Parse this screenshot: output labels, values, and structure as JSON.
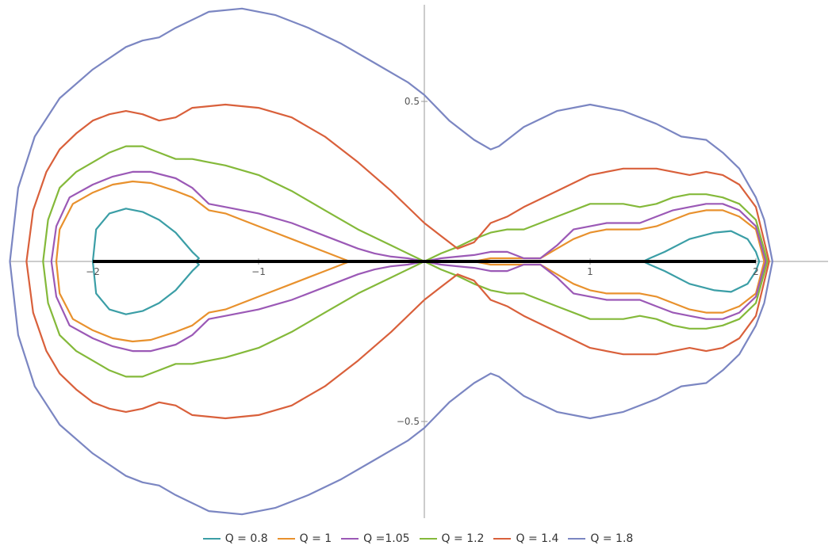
{
  "chart_data": {
    "type": "line",
    "title": "",
    "xlabel": "",
    "ylabel": "",
    "xlim": [
      -2.5,
      2.5
    ],
    "ylim": [
      -0.78,
      0.78
    ],
    "grid": false,
    "legend_position": "bottom",
    "x_ticks": [
      -2,
      -1,
      1,
      2
    ],
    "x_tick_labels": [
      "-2",
      "-1",
      "1",
      "2"
    ],
    "y_ticks": [
      -0.5,
      0.5
    ],
    "y_tick_labels": [
      "-0.5",
      "0.5"
    ],
    "segment": {
      "x": [
        -2,
        2
      ],
      "y": 0,
      "color": "#000000"
    },
    "series": [
      {
        "name": "Q = 0.8",
        "color": "#3b9ea6",
        "kind": "two_loops",
        "loops": [
          {
            "x": [
              -2.0,
              -1.98,
              -1.9,
              -1.8,
              -1.7,
              -1.6,
              -1.5,
              -1.4,
              -1.36,
              -1.38,
              -1.36,
              -1.4,
              -1.5,
              -1.6,
              -1.7,
              -1.8,
              -1.9,
              -1.98,
              -2.0
            ],
            "y": [
              0.0,
              0.1,
              0.15,
              0.165,
              0.155,
              0.13,
              0.09,
              0.03,
              0.01,
              0.0,
              -0.01,
              -0.03,
              -0.09,
              -0.13,
              -0.155,
              -0.165,
              -0.15,
              -0.1,
              0.0
            ]
          },
          {
            "x": [
              1.32,
              1.36,
              1.45,
              1.6,
              1.75,
              1.85,
              1.95,
              2.0,
              2.02,
              2.0,
              1.95,
              1.85,
              1.75,
              1.6,
              1.45,
              1.36,
              1.32
            ],
            "y": [
              0.0,
              0.01,
              0.03,
              0.07,
              0.09,
              0.095,
              0.07,
              0.03,
              0.0,
              -0.03,
              -0.07,
              -0.095,
              -0.09,
              -0.07,
              -0.03,
              -0.01,
              0.0
            ]
          }
        ]
      },
      {
        "name": "Q = 1",
        "color": "#e8912d",
        "kind": "closed",
        "x": [
          -2.22,
          -2.2,
          -2.12,
          -2.0,
          -1.88,
          -1.76,
          -1.65,
          -1.5,
          -1.4,
          -1.3,
          -1.2,
          -1.1,
          -1.0,
          -0.9,
          -0.8,
          -0.7,
          -0.6,
          -0.5,
          -0.45,
          -0.4,
          -0.3,
          -0.2,
          -0.1,
          0.0,
          0.1,
          0.2,
          0.3,
          0.4,
          0.5,
          0.6,
          0.7,
          0.8,
          0.9,
          1.0,
          1.1,
          1.2,
          1.3,
          1.4,
          1.5,
          1.6,
          1.7,
          1.8,
          1.9,
          2.0,
          2.05,
          2.0,
          1.9,
          1.8,
          1.7,
          1.6,
          1.5,
          1.4,
          1.3,
          1.2,
          1.1,
          1.0,
          0.9,
          0.8,
          0.7,
          0.6,
          0.5,
          0.4,
          0.3,
          0.2,
          0.1,
          0.0,
          -0.1,
          -0.2,
          -0.3,
          -0.4,
          -0.45,
          -0.5,
          -0.6,
          -0.7,
          -0.8,
          -0.9,
          -1.0,
          -1.1,
          -1.2,
          -1.3,
          -1.4,
          -1.5,
          -1.65,
          -1.76,
          -1.88,
          -2.0,
          -2.12,
          -2.2,
          -2.22
        ],
        "y": [
          0.0,
          0.1,
          0.18,
          0.215,
          0.24,
          0.25,
          0.245,
          0.22,
          0.2,
          0.16,
          0.15,
          0.13,
          0.11,
          0.09,
          0.07,
          0.05,
          0.03,
          0.01,
          0.0,
          0.0,
          0.0,
          0.0,
          0.0,
          0.0,
          0.0,
          0.0,
          0.0,
          0.01,
          0.01,
          0.01,
          0.01,
          0.04,
          0.07,
          0.09,
          0.1,
          0.1,
          0.1,
          0.11,
          0.13,
          0.15,
          0.16,
          0.16,
          0.14,
          0.1,
          0.0,
          -0.1,
          -0.14,
          -0.16,
          -0.16,
          -0.15,
          -0.13,
          -0.11,
          -0.1,
          -0.1,
          -0.1,
          -0.09,
          -0.07,
          -0.04,
          -0.01,
          -0.01,
          -0.01,
          -0.01,
          0.0,
          0.0,
          0.0,
          0.0,
          0.0,
          0.0,
          0.0,
          0.0,
          0.0,
          -0.01,
          -0.03,
          -0.05,
          -0.07,
          -0.09,
          -0.11,
          -0.13,
          -0.15,
          -0.16,
          -0.2,
          -0.22,
          -0.245,
          -0.25,
          -0.24,
          -0.215,
          -0.18,
          -0.1,
          0.0
        ]
      },
      {
        "name": "Q =1.05",
        "color": "#9b59b6",
        "kind": "closed",
        "x": [
          -2.25,
          -2.22,
          -2.14,
          -2.0,
          -1.88,
          -1.76,
          -1.65,
          -1.5,
          -1.4,
          -1.3,
          -1.2,
          -1.0,
          -0.8,
          -0.6,
          -0.4,
          -0.3,
          -0.2,
          -0.1,
          0.0,
          0.1,
          0.2,
          0.3,
          0.4,
          0.5,
          0.6,
          0.7,
          0.8,
          0.9,
          1.0,
          1.1,
          1.2,
          1.3,
          1.4,
          1.5,
          1.6,
          1.7,
          1.8,
          1.9,
          2.0,
          2.06,
          2.0,
          1.9,
          1.8,
          1.7,
          1.6,
          1.5,
          1.4,
          1.3,
          1.2,
          1.1,
          1.0,
          0.9,
          0.8,
          0.7,
          0.6,
          0.5,
          0.4,
          0.3,
          0.2,
          0.1,
          0.0,
          -0.1,
          -0.2,
          -0.3,
          -0.4,
          -0.6,
          -0.8,
          -1.0,
          -1.2,
          -1.3,
          -1.4,
          -1.5,
          -1.65,
          -1.76,
          -1.88,
          -2.0,
          -2.14,
          -2.22,
          -2.25
        ],
        "y": [
          0.0,
          0.11,
          0.2,
          0.24,
          0.265,
          0.28,
          0.28,
          0.26,
          0.23,
          0.18,
          0.17,
          0.15,
          0.12,
          0.08,
          0.04,
          0.025,
          0.015,
          0.01,
          0.0,
          0.01,
          0.015,
          0.02,
          0.03,
          0.03,
          0.01,
          0.01,
          0.05,
          0.1,
          0.11,
          0.12,
          0.12,
          0.12,
          0.14,
          0.16,
          0.17,
          0.18,
          0.18,
          0.16,
          0.11,
          0.0,
          -0.11,
          -0.16,
          -0.18,
          -0.18,
          -0.17,
          -0.16,
          -0.14,
          -0.12,
          -0.12,
          -0.12,
          -0.11,
          -0.1,
          -0.05,
          -0.01,
          -0.01,
          -0.03,
          -0.03,
          -0.02,
          -0.015,
          -0.01,
          0.0,
          -0.01,
          -0.015,
          -0.025,
          -0.04,
          -0.08,
          -0.12,
          -0.15,
          -0.17,
          -0.18,
          -0.23,
          -0.26,
          -0.28,
          -0.28,
          -0.265,
          -0.24,
          -0.2,
          -0.11,
          0.0
        ]
      },
      {
        "name": "Q = 1.2",
        "color": "#84b93a",
        "kind": "closed",
        "x": [
          -2.3,
          -2.27,
          -2.2,
          -2.1,
          -2.0,
          -1.9,
          -1.8,
          -1.7,
          -1.6,
          -1.5,
          -1.4,
          -1.3,
          -1.2,
          -1.0,
          -0.8,
          -0.6,
          -0.4,
          -0.2,
          0.0,
          0.1,
          0.2,
          0.3,
          0.4,
          0.5,
          0.6,
          0.8,
          1.0,
          1.2,
          1.3,
          1.4,
          1.5,
          1.6,
          1.7,
          1.8,
          1.9,
          2.0,
          2.07,
          2.0,
          1.9,
          1.8,
          1.7,
          1.6,
          1.5,
          1.4,
          1.3,
          1.2,
          1.0,
          0.8,
          0.6,
          0.5,
          0.4,
          0.3,
          0.2,
          0.1,
          0.0,
          -0.2,
          -0.4,
          -0.6,
          -0.8,
          -1.0,
          -1.2,
          -1.3,
          -1.4,
          -1.5,
          -1.6,
          -1.7,
          -1.8,
          -1.9,
          -2.0,
          -2.1,
          -2.2,
          -2.27,
          -2.3
        ],
        "y": [
          0.0,
          0.13,
          0.23,
          0.28,
          0.31,
          0.34,
          0.36,
          0.36,
          0.34,
          0.32,
          0.32,
          0.31,
          0.3,
          0.27,
          0.22,
          0.16,
          0.1,
          0.05,
          0.0,
          0.025,
          0.045,
          0.07,
          0.09,
          0.1,
          0.1,
          0.14,
          0.18,
          0.18,
          0.17,
          0.18,
          0.2,
          0.21,
          0.21,
          0.2,
          0.18,
          0.13,
          0.0,
          -0.13,
          -0.18,
          -0.2,
          -0.21,
          -0.21,
          -0.2,
          -0.18,
          -0.17,
          -0.18,
          -0.18,
          -0.14,
          -0.1,
          -0.1,
          -0.09,
          -0.07,
          -0.045,
          -0.025,
          0.0,
          -0.05,
          -0.1,
          -0.16,
          -0.22,
          -0.27,
          -0.3,
          -0.31,
          -0.32,
          -0.32,
          -0.34,
          -0.36,
          -0.36,
          -0.34,
          -0.31,
          -0.28,
          -0.23,
          -0.13,
          0.0
        ]
      },
      {
        "name": "Q = 1.4",
        "color": "#d9603b",
        "kind": "closed",
        "x": [
          -2.4,
          -2.36,
          -2.28,
          -2.2,
          -2.1,
          -2.0,
          -1.9,
          -1.8,
          -1.7,
          -1.6,
          -1.5,
          -1.4,
          -1.2,
          -1.0,
          -0.8,
          -0.6,
          -0.4,
          -0.2,
          0.0,
          0.1,
          0.2,
          0.3,
          0.4,
          0.5,
          0.6,
          0.8,
          1.0,
          1.2,
          1.4,
          1.6,
          1.7,
          1.8,
          1.9,
          2.0,
          2.08,
          2.0,
          1.9,
          1.8,
          1.7,
          1.6,
          1.4,
          1.2,
          1.0,
          0.8,
          0.6,
          0.5,
          0.4,
          0.3,
          0.2,
          0.1,
          0.0,
          -0.2,
          -0.4,
          -0.6,
          -0.8,
          -1.0,
          -1.2,
          -1.4,
          -1.5,
          -1.6,
          -1.7,
          -1.8,
          -1.9,
          -2.0,
          -2.1,
          -2.2,
          -2.28,
          -2.36,
          -2.4
        ],
        "y": [
          0.0,
          0.16,
          0.28,
          0.35,
          0.4,
          0.44,
          0.46,
          0.47,
          0.46,
          0.44,
          0.45,
          0.48,
          0.49,
          0.48,
          0.45,
          0.39,
          0.31,
          0.22,
          0.12,
          0.08,
          0.04,
          0.06,
          0.12,
          0.14,
          0.17,
          0.22,
          0.27,
          0.29,
          0.29,
          0.27,
          0.28,
          0.27,
          0.24,
          0.17,
          0.0,
          -0.17,
          -0.24,
          -0.27,
          -0.28,
          -0.27,
          -0.29,
          -0.29,
          -0.27,
          -0.22,
          -0.17,
          -0.14,
          -0.12,
          -0.06,
          -0.04,
          -0.08,
          -0.12,
          -0.22,
          -0.31,
          -0.39,
          -0.45,
          -0.48,
          -0.49,
          -0.48,
          -0.45,
          -0.44,
          -0.46,
          -0.47,
          -0.46,
          -0.44,
          -0.4,
          -0.35,
          -0.28,
          -0.16,
          0.0
        ]
      },
      {
        "name": "Q = 1.8",
        "color": "#7b86c2",
        "kind": "closed",
        "x": [
          -2.5,
          -2.45,
          -2.35,
          -2.2,
          -2.0,
          -1.8,
          -1.7,
          -1.6,
          -1.5,
          -1.3,
          -1.1,
          -0.9,
          -0.7,
          -0.5,
          -0.3,
          -0.1,
          0.0,
          0.15,
          0.3,
          0.4,
          0.45,
          0.6,
          0.8,
          1.0,
          1.2,
          1.4,
          1.55,
          1.7,
          1.8,
          1.9,
          2.0,
          2.05,
          2.1,
          2.05,
          2.0,
          1.9,
          1.8,
          1.7,
          1.55,
          1.4,
          1.2,
          1.0,
          0.8,
          0.6,
          0.45,
          0.4,
          0.3,
          0.15,
          0.0,
          -0.1,
          -0.3,
          -0.5,
          -0.7,
          -0.9,
          -1.1,
          -1.3,
          -1.5,
          -1.6,
          -1.7,
          -1.8,
          -2.0,
          -2.2,
          -2.35,
          -2.45,
          -2.5
        ],
        "y": [
          0.0,
          0.23,
          0.39,
          0.51,
          0.6,
          0.67,
          0.69,
          0.7,
          0.73,
          0.78,
          0.79,
          0.77,
          0.73,
          0.68,
          0.62,
          0.56,
          0.52,
          0.44,
          0.38,
          0.35,
          0.36,
          0.42,
          0.47,
          0.49,
          0.47,
          0.43,
          0.39,
          0.38,
          0.34,
          0.29,
          0.2,
          0.13,
          0.0,
          -0.13,
          -0.2,
          -0.29,
          -0.34,
          -0.38,
          -0.39,
          -0.43,
          -0.47,
          -0.49,
          -0.47,
          -0.42,
          -0.36,
          -0.35,
          -0.38,
          -0.44,
          -0.52,
          -0.56,
          -0.62,
          -0.68,
          -0.73,
          -0.77,
          -0.79,
          -0.78,
          -0.73,
          -0.7,
          -0.69,
          -0.67,
          -0.6,
          -0.51,
          -0.39,
          -0.23,
          0.0
        ]
      }
    ]
  }
}
